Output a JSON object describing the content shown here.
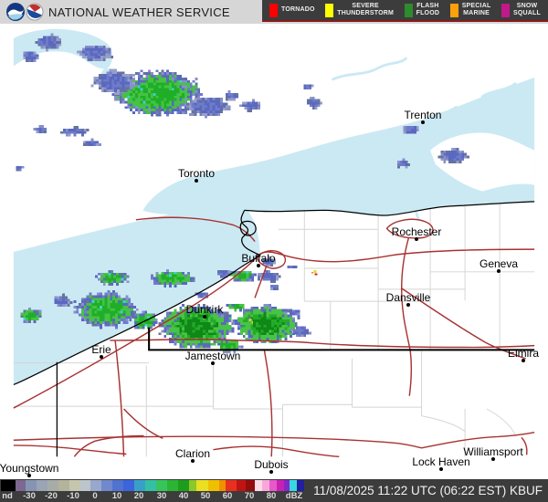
{
  "header": {
    "agency_title": "NATIONAL WEATHER SERVICE"
  },
  "legend": {
    "items": [
      {
        "label": "TORNADO",
        "color": "#ff0000"
      },
      {
        "label": "SEVERE\nTHUNDERSTORM",
        "color": "#ffff00"
      },
      {
        "label": "FLASH\nFLOOD",
        "color": "#2e8b2e"
      },
      {
        "label": "SPECIAL\nMARINE",
        "color": "#ffa00a"
      },
      {
        "label": "SNOW\nSQUALL",
        "color": "#c2188b"
      }
    ]
  },
  "map": {
    "water_color": "#cbe9f3",
    "road_color": "#a83232",
    "cities": [
      {
        "name": "Trenton"
      },
      {
        "name": "Toronto"
      },
      {
        "name": "Rochester"
      },
      {
        "name": "Geneva"
      },
      {
        "name": "Buffalo"
      },
      {
        "name": "Dansville"
      },
      {
        "name": "Dunkirk"
      },
      {
        "name": "Erie"
      },
      {
        "name": "Jamestown"
      },
      {
        "name": "Elmira"
      },
      {
        "name": "Youngstown"
      },
      {
        "name": "Clarion"
      },
      {
        "name": "Dubois"
      },
      {
        "name": "Lock Haven"
      },
      {
        "name": "Williamsport"
      }
    ]
  },
  "colorbar": {
    "ticks": [
      "nd",
      "-30",
      "-20",
      "-10",
      "0",
      "10",
      "20",
      "30",
      "40",
      "50",
      "60",
      "70",
      "80",
      "dBZ"
    ]
  },
  "status": {
    "timestamp": "11/08/2025 11:22 UTC (06:22 EST) KBUF"
  }
}
